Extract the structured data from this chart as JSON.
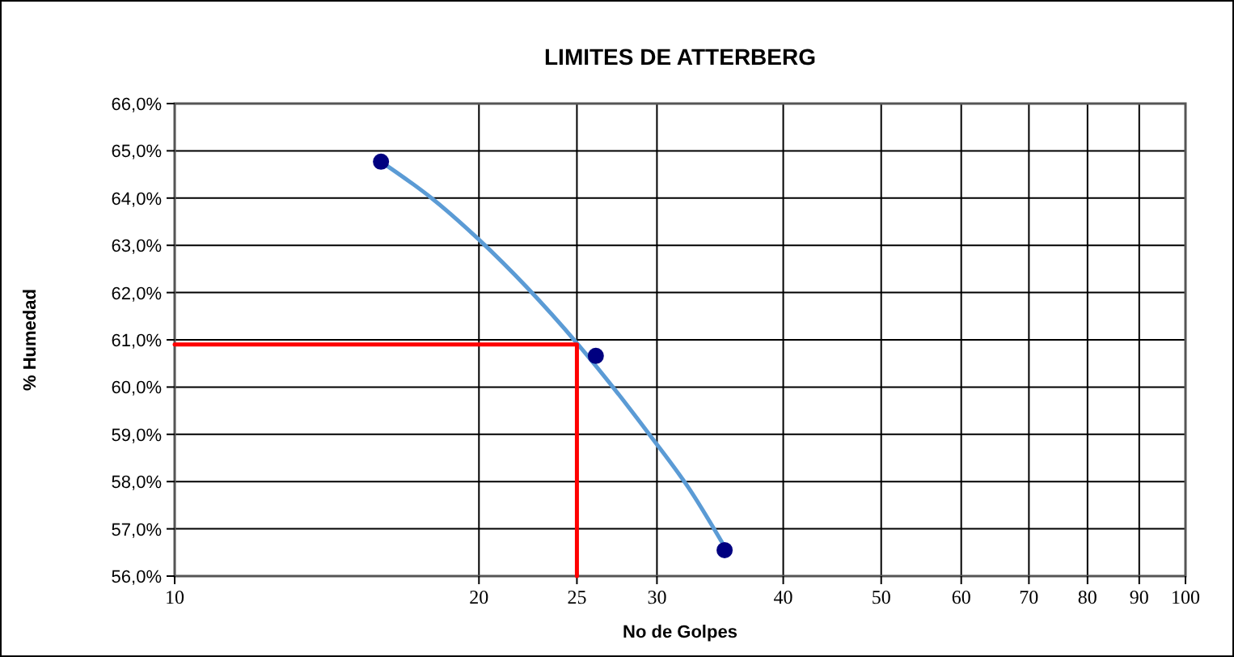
{
  "chart_data": {
    "type": "scatter",
    "title": "LIMITES DE ATTERBERG",
    "xlabel": "No de Golpes",
    "ylabel": "% Humedad",
    "log": "x",
    "grid": true,
    "xlim": [
      10,
      100
    ],
    "xticks": [
      10,
      20,
      25,
      30,
      40,
      50,
      60,
      70,
      80,
      90,
      100
    ],
    "ylim": [
      56,
      66
    ],
    "yticks": [
      {
        "value": 56,
        "label": "56,0%"
      },
      {
        "value": 57,
        "label": "57,0%"
      },
      {
        "value": 58,
        "label": "58,0%"
      },
      {
        "value": 59,
        "label": "59,0%"
      },
      {
        "value": 60,
        "label": "60,0%"
      },
      {
        "value": 61,
        "label": "61,0%"
      },
      {
        "value": 62,
        "label": "62,0%"
      },
      {
        "value": 63,
        "label": "63,0%"
      },
      {
        "value": 64,
        "label": "64,0%"
      },
      {
        "value": 65,
        "label": "65,0%"
      },
      {
        "value": 66,
        "label": "66,0%"
      }
    ],
    "series": [
      {
        "type": "line",
        "color": "#5b9bd5",
        "marker": "none",
        "line_style": "solid",
        "x": [
          16,
          18,
          20,
          25,
          29.6,
          32.4,
          35
        ],
        "values": [
          64.77,
          63.98,
          63.12,
          60.93,
          58.95,
          57.8,
          56.62
        ]
      },
      {
        "type": "line",
        "color": "#ff0000",
        "marker": "none",
        "line_style": "solid",
        "x": [
          10,
          25,
          25
        ],
        "values": [
          60.9,
          60.9,
          56
        ]
      },
      {
        "color": "#000080",
        "marker": "circle",
        "x": [
          16,
          26.1,
          35
        ],
        "values": [
          64.77,
          60.66,
          56.55
        ]
      }
    ]
  }
}
